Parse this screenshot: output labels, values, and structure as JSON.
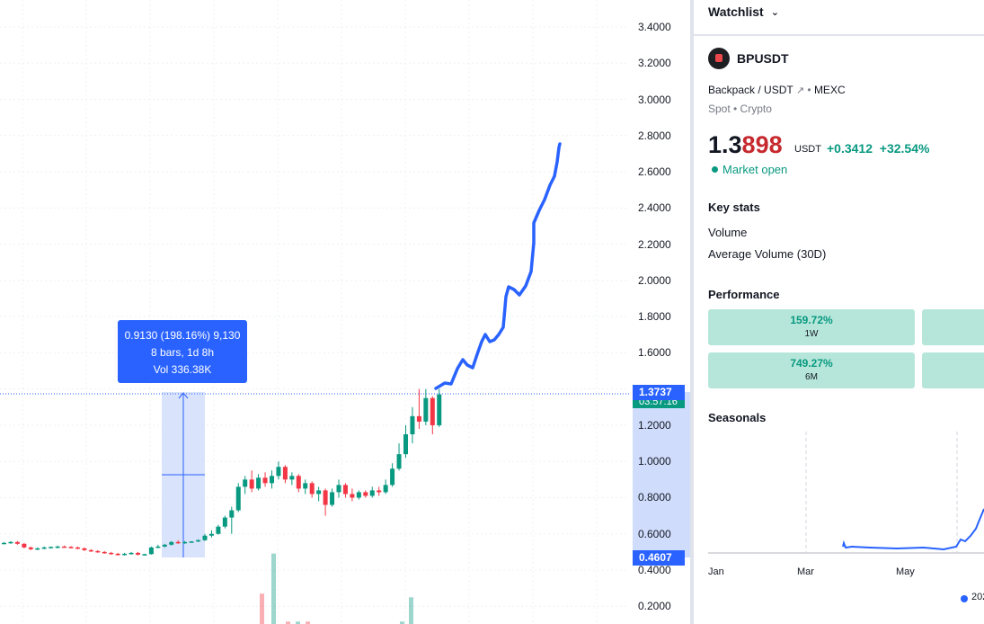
{
  "chart": {
    "price_ticks": [
      "3.4000",
      "3.2000",
      "3.0000",
      "2.8000",
      "2.6000",
      "2.4000",
      "2.2000",
      "2.0000",
      "1.8000",
      "1.6000",
      "1.4000",
      "1.2000",
      "1.0000",
      "0.8000",
      "0.6000",
      "0.4000",
      "0.2000"
    ],
    "tick_values": [
      3.4,
      3.2,
      3.0,
      2.8,
      2.6,
      2.4,
      2.2,
      2.0,
      1.8,
      1.6,
      1.4,
      1.2,
      1.0,
      0.8,
      0.6,
      0.4,
      0.2
    ],
    "last_price_label": "1.3737",
    "countdown_label": "03:57:16",
    "low_label": "0.4607",
    "measure": {
      "line1": "0.9130 (198.16%) 9,130",
      "line2": "8 bars, 1d 8h",
      "line3": "Vol 336.38K"
    },
    "colors": {
      "up": "#089981",
      "down": "#f23645",
      "drawing": "#2962ff",
      "measure_fill": "#cfdcfb"
    },
    "candles": [
      [
        0.55,
        0.555,
        0.545,
        0.55
      ],
      [
        0.55,
        0.56,
        0.545,
        0.555
      ],
      [
        0.555,
        0.56,
        0.54,
        0.545
      ],
      [
        0.545,
        0.55,
        0.52,
        0.525
      ],
      [
        0.525,
        0.53,
        0.51,
        0.515
      ],
      [
        0.515,
        0.525,
        0.51,
        0.52
      ],
      [
        0.52,
        0.53,
        0.515,
        0.525
      ],
      [
        0.525,
        0.53,
        0.52,
        0.528
      ],
      [
        0.528,
        0.535,
        0.52,
        0.53
      ],
      [
        0.53,
        0.535,
        0.525,
        0.528
      ],
      [
        0.528,
        0.532,
        0.52,
        0.525
      ],
      [
        0.525,
        0.53,
        0.515,
        0.52
      ],
      [
        0.52,
        0.525,
        0.505,
        0.51
      ],
      [
        0.51,
        0.515,
        0.5,
        0.505
      ],
      [
        0.505,
        0.51,
        0.495,
        0.5
      ],
      [
        0.5,
        0.505,
        0.49,
        0.495
      ],
      [
        0.495,
        0.5,
        0.485,
        0.49
      ],
      [
        0.49,
        0.495,
        0.48,
        0.485
      ],
      [
        0.485,
        0.495,
        0.48,
        0.49
      ],
      [
        0.49,
        0.5,
        0.485,
        0.495
      ],
      [
        0.495,
        0.5,
        0.48,
        0.485
      ],
      [
        0.485,
        0.49,
        0.48,
        0.488
      ],
      [
        0.488,
        0.53,
        0.485,
        0.525
      ],
      [
        0.525,
        0.54,
        0.52,
        0.53
      ],
      [
        0.53,
        0.545,
        0.525,
        0.54
      ],
      [
        0.54,
        0.56,
        0.535,
        0.555
      ],
      [
        0.555,
        0.565,
        0.545,
        0.55
      ],
      [
        0.55,
        0.56,
        0.545,
        0.555
      ],
      [
        0.555,
        0.56,
        0.55,
        0.558
      ],
      [
        0.558,
        0.57,
        0.555,
        0.565
      ],
      [
        0.565,
        0.6,
        0.56,
        0.59
      ],
      [
        0.59,
        0.62,
        0.58,
        0.6
      ],
      [
        0.6,
        0.65,
        0.595,
        0.64
      ],
      [
        0.64,
        0.7,
        0.63,
        0.69
      ],
      [
        0.69,
        0.75,
        0.6,
        0.73
      ],
      [
        0.73,
        0.88,
        0.72,
        0.86
      ],
      [
        0.86,
        0.92,
        0.82,
        0.9
      ],
      [
        0.9,
        0.95,
        0.83,
        0.85
      ],
      [
        0.85,
        0.93,
        0.84,
        0.91
      ],
      [
        0.91,
        0.94,
        0.86,
        0.88
      ],
      [
        0.88,
        0.95,
        0.85,
        0.92
      ],
      [
        0.92,
        1.0,
        0.9,
        0.97
      ],
      [
        0.97,
        0.98,
        0.88,
        0.9
      ],
      [
        0.9,
        0.94,
        0.87,
        0.92
      ],
      [
        0.92,
        0.93,
        0.83,
        0.85
      ],
      [
        0.85,
        0.9,
        0.82,
        0.88
      ],
      [
        0.88,
        0.89,
        0.8,
        0.82
      ],
      [
        0.82,
        0.86,
        0.78,
        0.84
      ],
      [
        0.84,
        0.85,
        0.7,
        0.76
      ],
      [
        0.76,
        0.85,
        0.75,
        0.83
      ],
      [
        0.83,
        0.9,
        0.8,
        0.87
      ],
      [
        0.87,
        0.88,
        0.8,
        0.82
      ],
      [
        0.82,
        0.85,
        0.78,
        0.8
      ],
      [
        0.8,
        0.84,
        0.79,
        0.83
      ],
      [
        0.83,
        0.84,
        0.8,
        0.81
      ],
      [
        0.81,
        0.86,
        0.8,
        0.84
      ],
      [
        0.84,
        0.86,
        0.81,
        0.83
      ],
      [
        0.83,
        0.9,
        0.82,
        0.87
      ],
      [
        0.87,
        0.99,
        0.86,
        0.96
      ],
      [
        0.96,
        1.1,
        0.95,
        1.04
      ],
      [
        1.04,
        1.2,
        1.02,
        1.15
      ],
      [
        1.15,
        1.3,
        1.1,
        1.25
      ],
      [
        1.25,
        1.4,
        1.18,
        1.22
      ],
      [
        1.22,
        1.4,
        1.2,
        1.35
      ],
      [
        1.35,
        1.36,
        1.15,
        1.2
      ],
      [
        1.2,
        1.4,
        1.19,
        1.37
      ]
    ],
    "volumes": [
      0.25,
      0.58,
      0.02,
      0.02,
      0.02,
      0.02,
      0.22
    ]
  },
  "sidebar": {
    "watchlist_label": "Watchlist",
    "symbol": "BPUSDT",
    "pair_desc": "Backpack / USDT",
    "exchange": "MEXC",
    "type_line": "Spot • Crypto",
    "price_main": "1.3",
    "price_hl": "898",
    "price_unit": "USDT",
    "change": "+0.3412",
    "change_pct": "+32.54%",
    "market_status": "Market open",
    "key_stats_title": "Key stats",
    "stat_volume": "Volume",
    "stat_avg_volume": "Average Volume (30D)",
    "performance_title": "Performance",
    "perf": [
      {
        "value": "159.72%",
        "period": "1W"
      },
      {
        "value": "749.27%",
        "period": "6M"
      }
    ],
    "seasonals_title": "Seasonals",
    "months": [
      "Jan",
      "Mar",
      "May"
    ],
    "legend_label": "202"
  }
}
